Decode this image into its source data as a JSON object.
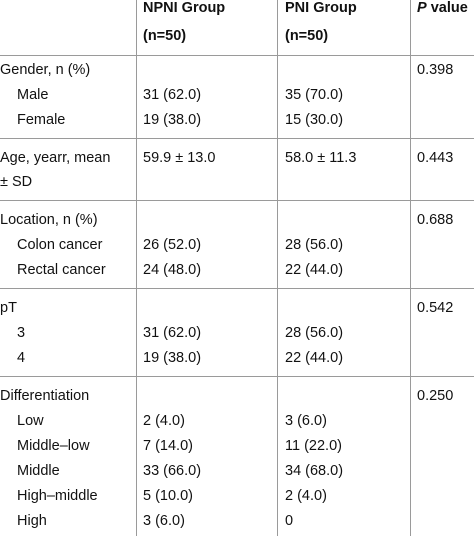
{
  "header": {
    "npni": [
      "NPNI Group",
      "(n=50)"
    ],
    "pni": [
      "PNI Group",
      "(n=50)"
    ],
    "p": [
      "P",
      "value"
    ]
  },
  "sections": [
    {
      "label": "Gender, n (%)",
      "p": "0.398",
      "rows": [
        {
          "label": "Male",
          "npni": "31 (62.0)",
          "pni": "35 (70.0)"
        },
        {
          "label": "Female",
          "npni": "19 (38.0)",
          "pni": "15 (30.0)"
        }
      ]
    },
    {
      "label": "Age, yearr, mean",
      "label_cont": "± SD",
      "npni": "59.9 ± 13.0",
      "pni": "58.0 ± 11.3",
      "p": "0.443"
    },
    {
      "label": "Location, n (%)",
      "p": "0.688",
      "rows": [
        {
          "label": "Colon cancer",
          "npni": "26 (52.0)",
          "pni": "28 (56.0)"
        },
        {
          "label": "Rectal cancer",
          "npni": "24 (48.0)",
          "pni": "22 (44.0)"
        }
      ]
    },
    {
      "label": "pT",
      "p": "0.542",
      "rows": [
        {
          "label": "3",
          "npni": "31 (62.0)",
          "pni": "28 (56.0)"
        },
        {
          "label": "4",
          "npni": "19 (38.0)",
          "pni": "22 (44.0)"
        }
      ]
    },
    {
      "label": "Differentiation",
      "p": "0.250",
      "rows": [
        {
          "label": "Low",
          "npni": "2 (4.0)",
          "pni": "3 (6.0)"
        },
        {
          "label": "Middle–low",
          "npni": "7 (14.0)",
          "pni": "11 (22.0)"
        },
        {
          "label": "Middle",
          "npni": "33 (66.0)",
          "pni": "34 (68.0)"
        },
        {
          "label": "High–middle",
          "npni": "5 (10.0)",
          "pni": "2 (4.0)"
        },
        {
          "label": "High",
          "npni": "3 (6.0)",
          "pni": "0"
        }
      ]
    }
  ]
}
